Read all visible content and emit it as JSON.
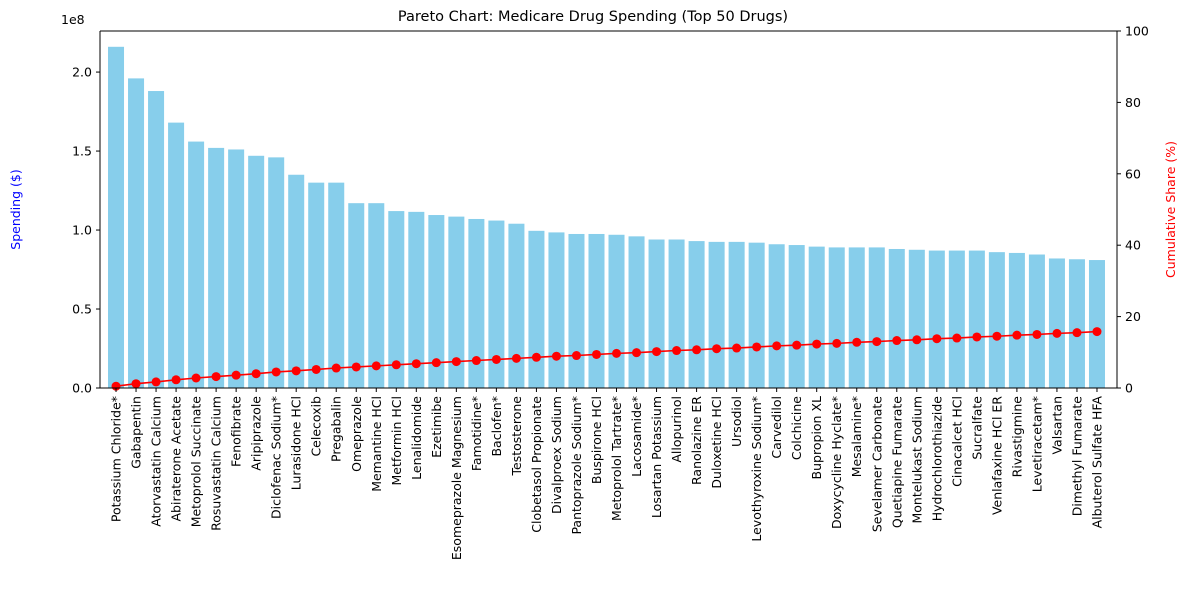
{
  "chart_data": {
    "type": "bar",
    "title": "Pareto Chart: Medicare Drug Spending (Top 50 Drugs)",
    "ylabel": "Spending ($)",
    "y2label": "Cumulative Share (%)",
    "offset_text": "1e8",
    "ylim": [
      0,
      226000000
    ],
    "y2lim": [
      0,
      100
    ],
    "yticks": [
      0,
      50000000,
      100000000,
      150000000,
      200000000
    ],
    "ytick_labels": [
      "0.0",
      "0.5",
      "1.0",
      "1.5",
      "2.0"
    ],
    "y2ticks": [
      0,
      20,
      40,
      60,
      80,
      100
    ],
    "y2tick_labels": [
      "0",
      "20",
      "40",
      "60",
      "80",
      "100"
    ],
    "grid": false,
    "bar_color": "#87ceeb",
    "line_color": "#ff0000",
    "ylabel_color": "#0000ff",
    "y2label_color": "#ff0000",
    "categories": [
      "Potassium Chloride*",
      "Gabapentin",
      "Atorvastatin Calcium",
      "Abiraterone Acetate",
      "Metoprolol Succinate",
      "Rosuvastatin Calcium",
      "Fenofibrate",
      "Aripiprazole",
      "Diclofenac Sodium*",
      "Lurasidone HCl",
      "Celecoxib",
      "Pregabalin",
      "Omeprazole",
      "Memantine HCl",
      "Metformin HCl",
      "Lenalidomide",
      "Ezetimibe",
      "Esomeprazole Magnesium",
      "Famotidine*",
      "Baclofen*",
      "Testosterone",
      "Clobetasol Propionate",
      "Divalproex Sodium",
      "Pantoprazole Sodium*",
      "Buspirone HCl",
      "Metoprolol Tartrate*",
      "Lacosamide*",
      "Losartan Potassium",
      "Allopurinol",
      "Ranolazine ER",
      "Duloxetine HCl",
      "Ursodiol",
      "Levothyroxine Sodium*",
      "Carvedilol",
      "Colchicine",
      "Bupropion XL",
      "Doxycycline Hyclate*",
      "Mesalamine*",
      "Sevelamer Carbonate",
      "Quetiapine Fumarate",
      "Montelukast Sodium",
      "Hydrochlorothiazide",
      "Cinacalcet HCl",
      "Sucralfate",
      "Venlafaxine HCl ER",
      "Rivastigmine",
      "Levetiracetam*",
      "Valsartan",
      "Dimethyl Fumarate",
      "Albuterol Sulfate HFA"
    ],
    "series": [
      {
        "name": "Spending",
        "type": "bar",
        "axis": "left",
        "values": [
          216000000,
          196000000,
          188000000,
          168000000,
          156000000,
          152000000,
          151000000,
          147000000,
          146000000,
          135000000,
          130000000,
          130000000,
          117000000,
          117000000,
          112000000,
          111500000,
          109500000,
          108500000,
          107000000,
          106000000,
          104000000,
          99500000,
          98500000,
          97500000,
          97500000,
          97000000,
          96000000,
          94000000,
          94000000,
          93000000,
          92500000,
          92500000,
          92000000,
          91000000,
          90500000,
          89500000,
          89000000,
          89000000,
          89000000,
          88000000,
          87500000,
          87000000,
          87000000,
          87000000,
          86000000,
          85500000,
          84500000,
          82000000,
          81500000,
          81000000
        ]
      },
      {
        "name": "Cumulative Share",
        "type": "line",
        "axis": "right",
        "values": [
          0.5,
          1.2,
          1.7,
          2.3,
          2.8,
          3.2,
          3.6,
          4.0,
          4.5,
          4.8,
          5.2,
          5.6,
          5.9,
          6.2,
          6.5,
          6.8,
          7.1,
          7.4,
          7.7,
          8.0,
          8.3,
          8.6,
          8.9,
          9.1,
          9.4,
          9.7,
          9.9,
          10.2,
          10.5,
          10.7,
          11.0,
          11.2,
          11.5,
          11.8,
          12.0,
          12.3,
          12.5,
          12.8,
          13.0,
          13.3,
          13.5,
          13.8,
          14.0,
          14.3,
          14.5,
          14.8,
          15.0,
          15.3,
          15.5,
          15.8
        ]
      }
    ]
  }
}
